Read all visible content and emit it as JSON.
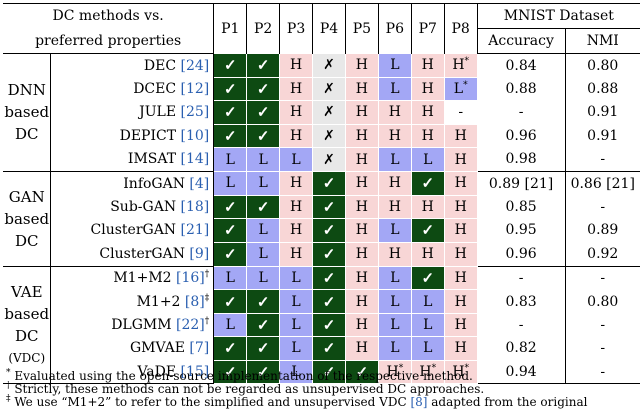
{
  "header": {
    "methods_label": "DC methods vs.",
    "methods_label2": "preferred properties",
    "props": [
      "P1",
      "P2",
      "P3",
      "P4",
      "P5",
      "P6",
      "P7",
      "P8"
    ],
    "dataset": "MNIST Dataset",
    "metrics": [
      "Accuracy",
      "NMI"
    ]
  },
  "groups": [
    {
      "label": [
        "DNN",
        "based",
        "DC"
      ],
      "rows": [
        {
          "method": "DEC ",
          "cite": "[24]",
          "cells": [
            [
              "check",
              "✓"
            ],
            [
              "check",
              "✓"
            ],
            [
              "H",
              "H"
            ],
            [
              "x",
              "✗"
            ],
            [
              "H",
              "H"
            ],
            [
              "L",
              "L"
            ],
            [
              "H",
              "H"
            ],
            [
              "H",
              "H*"
            ]
          ],
          "acc": "0.84",
          "nmi": "0.80"
        },
        {
          "method": "DCEC ",
          "cite": "[12]",
          "cells": [
            [
              "check",
              "✓"
            ],
            [
              "check",
              "✓"
            ],
            [
              "H",
              "H"
            ],
            [
              "x",
              "✗"
            ],
            [
              "H",
              "H"
            ],
            [
              "L",
              "L"
            ],
            [
              "H",
              "H"
            ],
            [
              "L",
              "L*"
            ]
          ],
          "acc": "0.88",
          "nmi": "0.88"
        },
        {
          "method": "JULE ",
          "cite": "[25]",
          "cells": [
            [
              "check",
              "✓"
            ],
            [
              "check",
              "✓"
            ],
            [
              "H",
              "H"
            ],
            [
              "x",
              "✗"
            ],
            [
              "H",
              "H"
            ],
            [
              "H",
              "H"
            ],
            [
              "H",
              "H"
            ],
            [
              "dash",
              "-"
            ]
          ],
          "acc": "-",
          "nmi": "0.91"
        },
        {
          "method": "DEPICT ",
          "cite": "[10]",
          "cells": [
            [
              "check",
              "✓"
            ],
            [
              "check",
              "✓"
            ],
            [
              "H",
              "H"
            ],
            [
              "x",
              "✗"
            ],
            [
              "H",
              "H"
            ],
            [
              "H",
              "H"
            ],
            [
              "H",
              "H"
            ],
            [
              "H",
              "H"
            ]
          ],
          "acc": "0.96",
          "nmi": "0.91"
        },
        {
          "method": "IMSAT ",
          "cite": "[14]",
          "cells": [
            [
              "L",
              "L"
            ],
            [
              "L",
              "L"
            ],
            [
              "L",
              "L"
            ],
            [
              "x",
              "✗"
            ],
            [
              "H",
              "H"
            ],
            [
              "L",
              "L"
            ],
            [
              "L",
              "L"
            ],
            [
              "H",
              "H"
            ]
          ],
          "acc": "0.98",
          "nmi": "-"
        }
      ]
    },
    {
      "label": [
        "GAN",
        "based",
        "DC"
      ],
      "rows": [
        {
          "method": "InfoGAN ",
          "cite": "[4]",
          "cells": [
            [
              "L",
              "L"
            ],
            [
              "L",
              "L"
            ],
            [
              "H",
              "H"
            ],
            [
              "check",
              "✓"
            ],
            [
              "H",
              "H"
            ],
            [
              "H",
              "H"
            ],
            [
              "check",
              "✓"
            ],
            [
              "H",
              "H"
            ]
          ],
          "acc": "0.89 [21]",
          "nmi": "0.86 [21]"
        },
        {
          "method": "Sub-GAN ",
          "cite": "[18]",
          "cells": [
            [
              "check",
              "✓"
            ],
            [
              "check",
              "✓"
            ],
            [
              "H",
              "H"
            ],
            [
              "check",
              "✓"
            ],
            [
              "H",
              "H"
            ],
            [
              "H",
              "H"
            ],
            [
              "H",
              "H"
            ],
            [
              "H",
              "H"
            ]
          ],
          "acc": "0.85",
          "nmi": "-"
        },
        {
          "method": "ClusterGAN ",
          "cite": "[21]",
          "cells": [
            [
              "check",
              "✓"
            ],
            [
              "L",
              "L"
            ],
            [
              "H",
              "H"
            ],
            [
              "check",
              "✓"
            ],
            [
              "H",
              "H"
            ],
            [
              "L",
              "L"
            ],
            [
              "check",
              "✓"
            ],
            [
              "H",
              "H"
            ]
          ],
          "acc": "0.95",
          "nmi": "0.89"
        },
        {
          "method": "ClusterGAN ",
          "cite": "[9]",
          "cells": [
            [
              "check",
              "✓"
            ],
            [
              "L",
              "L"
            ],
            [
              "H",
              "H"
            ],
            [
              "check",
              "✓"
            ],
            [
              "H",
              "H"
            ],
            [
              "H",
              "H"
            ],
            [
              "H",
              "H"
            ],
            [
              "H",
              "H"
            ]
          ],
          "acc": "0.96",
          "nmi": "0.92"
        }
      ]
    },
    {
      "label": [
        "VAE",
        "based",
        "DC",
        "(VDC)"
      ],
      "rows": [
        {
          "method": "M1+M2 ",
          "cite": "[16]",
          "sup": "†",
          "cells": [
            [
              "L",
              "L"
            ],
            [
              "L",
              "L"
            ],
            [
              "L",
              "L"
            ],
            [
              "check",
              "✓"
            ],
            [
              "H",
              "H"
            ],
            [
              "L",
              "L"
            ],
            [
              "check",
              "✓"
            ],
            [
              "H",
              "H"
            ]
          ],
          "acc": "-",
          "nmi": "-"
        },
        {
          "method": "M1+2 ",
          "cite": "[8]",
          "sup": "‡",
          "cells": [
            [
              "check",
              "✓"
            ],
            [
              "check",
              "✓"
            ],
            [
              "L",
              "L"
            ],
            [
              "check",
              "✓"
            ],
            [
              "H",
              "H"
            ],
            [
              "L",
              "L"
            ],
            [
              "L",
              "L"
            ],
            [
              "H",
              "H"
            ]
          ],
          "acc": "0.83",
          "nmi": "0.80"
        },
        {
          "method": "DLGMM ",
          "cite": "[22]",
          "sup": "†",
          "cells": [
            [
              "L",
              "L"
            ],
            [
              "check",
              "✓"
            ],
            [
              "L",
              "L"
            ],
            [
              "check",
              "✓"
            ],
            [
              "H",
              "H"
            ],
            [
              "L",
              "L"
            ],
            [
              "L",
              "L"
            ],
            [
              "H",
              "H"
            ]
          ],
          "acc": "-",
          "nmi": "-"
        },
        {
          "method": "GMVAE ",
          "cite": "[7]",
          "cells": [
            [
              "check",
              "✓"
            ],
            [
              "check",
              "✓"
            ],
            [
              "L",
              "L"
            ],
            [
              "check",
              "✓"
            ],
            [
              "H",
              "H"
            ],
            [
              "L",
              "L"
            ],
            [
              "L",
              "L"
            ],
            [
              "H",
              "H"
            ]
          ],
          "acc": "0.82",
          "nmi": "-"
        },
        {
          "method": "VaDE ",
          "cite": "[15]",
          "cells": [
            [
              "check",
              "✓"
            ],
            [
              "check",
              "✓"
            ],
            [
              "L",
              "L"
            ],
            [
              "check",
              "✓"
            ],
            [
              "check",
              "✓"
            ],
            [
              "H",
              "H*"
            ],
            [
              "H",
              "H*"
            ],
            [
              "H",
              "H*"
            ]
          ],
          "acc": "0.94",
          "nmi": "-"
        }
      ]
    }
  ],
  "footnotes": [
    {
      "mark": "*",
      "text": " Evaluated using the open-source implementation of the respective method."
    },
    {
      "mark": "†",
      "text": " Strictly, these methods can not be regarded as unsupervised DC approaches."
    },
    {
      "mark": "‡",
      "text": " We use “M1+2” to refer to the simplified and unsupervised VDC ",
      "cite": "[8]",
      "tail": " adapted from the original"
    }
  ],
  "colors": {
    "check": "#0d4a12",
    "L": "#a3a7f5",
    "H": "#f8d6d6",
    "x": "#e8e8e8"
  }
}
